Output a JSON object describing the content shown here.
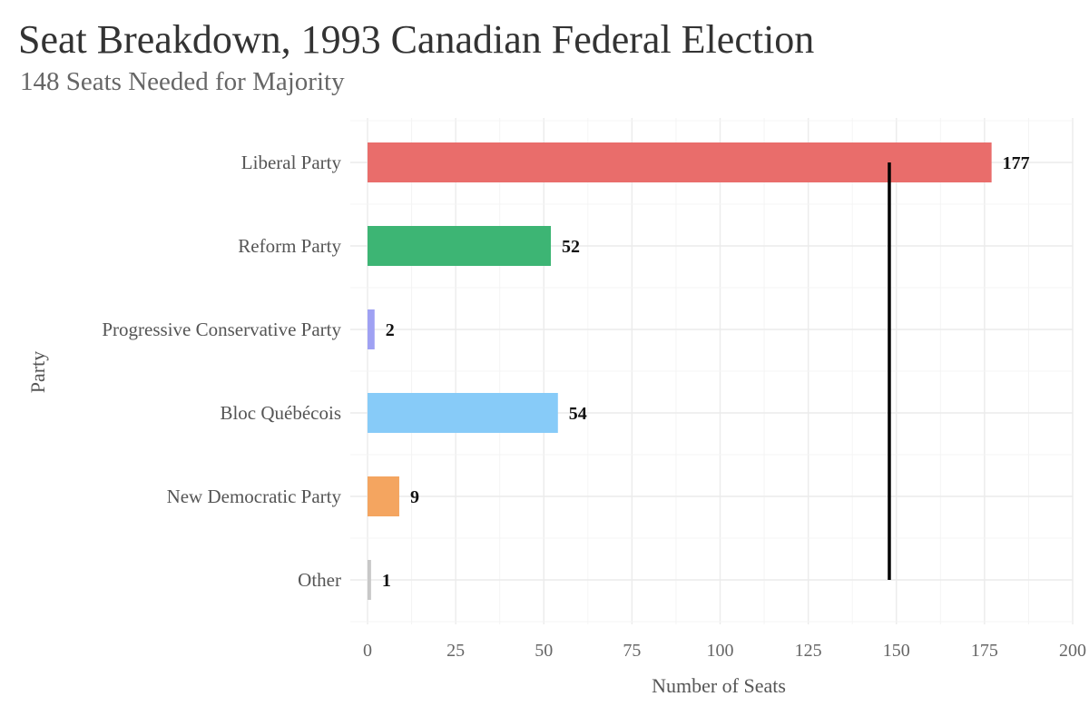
{
  "chart_data": {
    "type": "bar",
    "orientation": "horizontal",
    "title": "Seat Breakdown, 1993 Canadian Federal Election",
    "subtitle": "148 Seats Needed for Majority",
    "xlabel": "Number of Seats",
    "ylabel": "Party",
    "categories": [
      "Liberal Party",
      "Reform Party",
      "Progressive Conservative Party",
      "Bloc Québécois",
      "New Democratic Party",
      "Other"
    ],
    "values": [
      177,
      52,
      2,
      54,
      9,
      1
    ],
    "colors": [
      "#E96D6B",
      "#3DB574",
      "#9FA1F3",
      "#87CBF8",
      "#F4A560",
      "#C8C8C8"
    ],
    "xlim": [
      0,
      200
    ],
    "xticks": [
      0,
      25,
      50,
      75,
      100,
      125,
      150,
      175,
      200
    ],
    "majority_line": 148,
    "grid": true,
    "legend": "none"
  }
}
